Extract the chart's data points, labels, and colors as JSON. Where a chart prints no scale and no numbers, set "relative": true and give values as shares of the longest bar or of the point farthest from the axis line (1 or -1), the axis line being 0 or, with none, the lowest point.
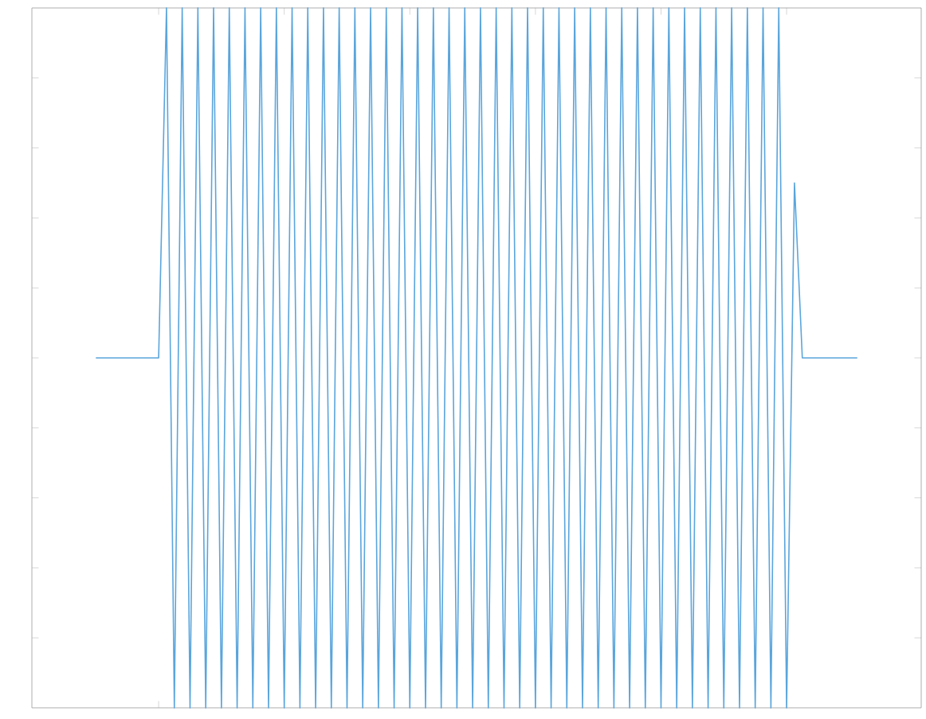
{
  "chart_data": {
    "type": "line",
    "relative": true,
    "color": "#5aa5dc",
    "categories": [
      null,
      null,
      null,
      null,
      null,
      null,
      null,
      null,
      null,
      null,
      null,
      null,
      null,
      null,
      null,
      null,
      null,
      null,
      null,
      null,
      null,
      null,
      null,
      null,
      null,
      null,
      null,
      null,
      null,
      null,
      null,
      null,
      null,
      null,
      null,
      null,
      null,
      null,
      null,
      null,
      null,
      null,
      null,
      null,
      null,
      null,
      null,
      null,
      null,
      null,
      null,
      null,
      null,
      null,
      null,
      null,
      null,
      null,
      null,
      null,
      null,
      null,
      null,
      null,
      null,
      null,
      null,
      null,
      null,
      null,
      null,
      null,
      null,
      null,
      null,
      null,
      null,
      null,
      null,
      null,
      null,
      null,
      null,
      null,
      null,
      null,
      null,
      null,
      null,
      null,
      null,
      null,
      null,
      null,
      null,
      null,
      null,
      null
    ],
    "values": [
      0.5,
      0.5,
      0.5,
      0.5,
      0.5,
      0.5,
      0.5,
      0.5,
      0.5,
      1,
      0,
      1,
      0,
      1,
      0,
      1,
      0,
      1,
      0,
      1,
      0,
      1,
      0,
      1,
      0,
      1,
      0,
      1,
      0,
      1,
      0,
      1,
      0,
      1,
      0,
      1,
      0,
      1,
      0,
      1,
      0,
      1,
      0,
      1,
      0,
      1,
      0,
      1,
      0,
      1,
      0,
      1,
      0,
      1,
      0,
      1,
      0,
      1,
      0,
      1,
      0,
      1,
      0,
      1,
      0,
      1,
      0,
      1,
      0,
      1,
      0,
      1,
      0,
      1,
      0,
      1,
      0,
      1,
      0,
      1,
      0,
      1,
      0,
      1,
      0,
      1,
      0,
      1,
      0,
      0.75,
      0.5,
      0.5,
      0.5,
      0.5,
      0.5,
      0.5,
      0.5,
      0.5
    ],
    "grid": false,
    "tick_labels": false,
    "marker": "none",
    "line_style": "solid"
  }
}
